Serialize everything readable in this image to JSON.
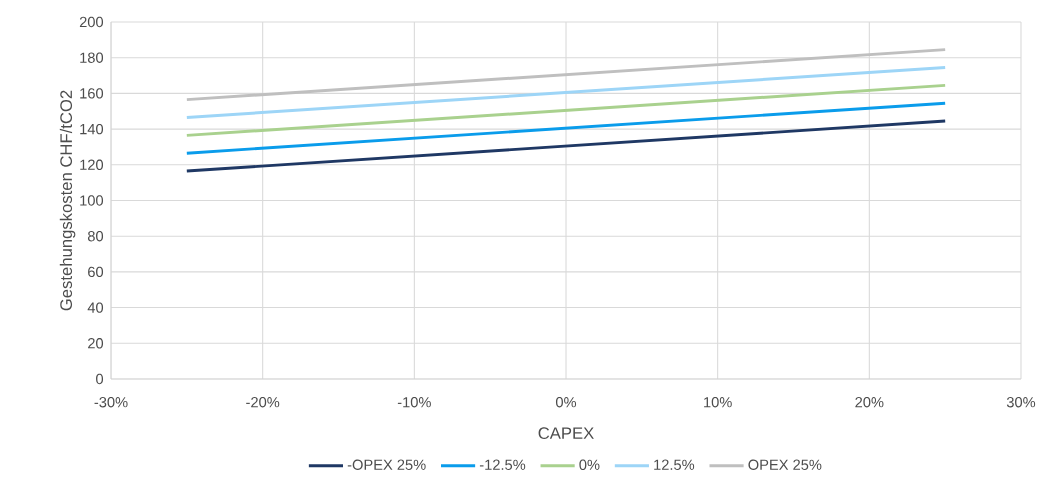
{
  "chart_data": {
    "type": "line",
    "xlabel": "CAPEX",
    "ylabel": "Gestehungskosten CHF/tCO2",
    "x": [
      -25,
      25
    ],
    "series": [
      {
        "name": "-OPEX 25%",
        "color": "#1f3864",
        "values": [
          116.5,
          144.5
        ]
      },
      {
        "name": "-12.5%",
        "color": "#0a9ceb",
        "values": [
          126.5,
          154.5
        ]
      },
      {
        "name": "0%",
        "color": "#a9d18e",
        "values": [
          136.5,
          164.5
        ]
      },
      {
        "name": "12.5%",
        "color": "#9dd5f7",
        "values": [
          146.5,
          174.5
        ]
      },
      {
        "name": "OPEX 25%",
        "color": "#bfbfbf",
        "values": [
          156.5,
          184.5
        ]
      }
    ],
    "xlim": [
      -30,
      30
    ],
    "ylim": [
      0,
      200
    ],
    "xticks": [
      {
        "value": -30,
        "label": "-30%"
      },
      {
        "value": -20,
        "label": "-20%"
      },
      {
        "value": -10,
        "label": "-10%"
      },
      {
        "value": 0,
        "label": "0%"
      },
      {
        "value": 10,
        "label": "10%"
      },
      {
        "value": 20,
        "label": "20%"
      },
      {
        "value": 30,
        "label": "30%"
      }
    ],
    "yticks": [
      0,
      20,
      40,
      60,
      80,
      100,
      120,
      140,
      160,
      180,
      200
    ],
    "grid": true,
    "legend": "bottom",
    "marker": "none",
    "line_style": "solid"
  }
}
